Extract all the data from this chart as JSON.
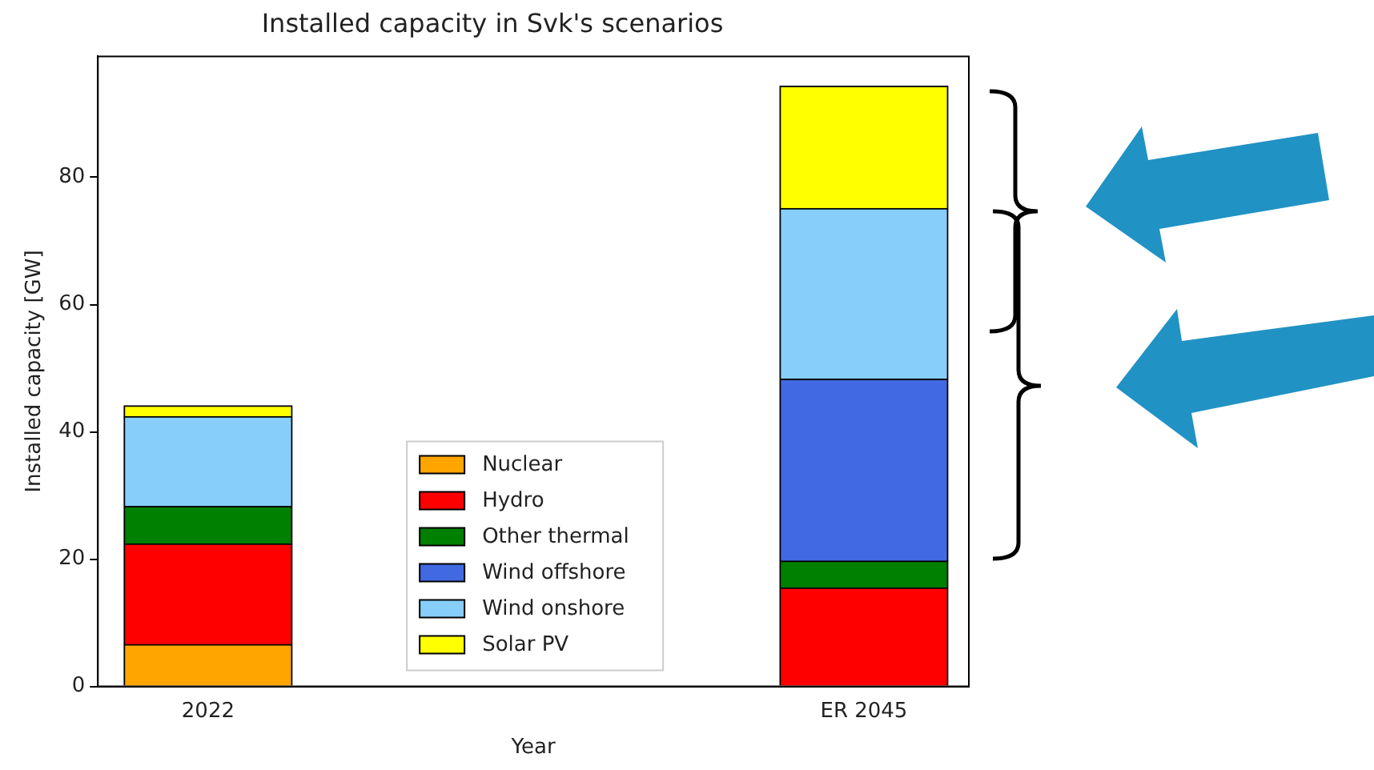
{
  "chart_data": {
    "type": "bar",
    "title": "Installed capacity in Svk's scenarios",
    "xlabel": "Year",
    "ylabel": "Installed capacity [GW]",
    "categories": [
      "2022",
      "ER 2045"
    ],
    "stacked": true,
    "series": [
      {
        "name": "Nuclear",
        "color": "#ffa500",
        "values": [
          6.6,
          0
        ]
      },
      {
        "name": "Hydro",
        "color": "#ff0000",
        "values": [
          15.8,
          15.5
        ]
      },
      {
        "name": "Other thermal",
        "color": "#008000",
        "values": [
          5.9,
          4.2
        ]
      },
      {
        "name": "Wind offshore",
        "color": "#4169e1",
        "values": [
          0,
          28.6
        ]
      },
      {
        "name": "Wind onshore",
        "color": "#87cefa",
        "values": [
          14.1,
          26.8
        ]
      },
      {
        "name": "Solar PV",
        "color": "#ffff00",
        "values": [
          1.7,
          19.2
        ]
      }
    ],
    "ylim": [
      0,
      99
    ],
    "yticks": [
      0,
      20,
      40,
      60,
      80
    ],
    "grid": false,
    "legend": "bottom"
  }
}
